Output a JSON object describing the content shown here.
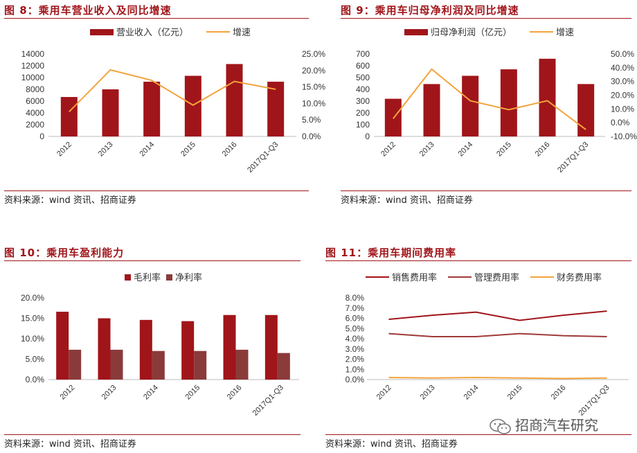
{
  "colors": {
    "accent": "#a0151a",
    "bar_dark": "#a0151a",
    "bar_brown": "#8b3a3a",
    "line_orange": "#f3a33b"
  },
  "charts": [
    {
      "title": "图 8：乘用车营业收入及同比增速",
      "source": "资料来源：wind 资讯、招商证券",
      "legend": [
        "营业收入（亿元）",
        "增速"
      ],
      "chart_data": {
        "type": "bar+line",
        "categories": [
          "2012",
          "2013",
          "2014",
          "2015",
          "2016",
          "2017Q1-Q3"
        ],
        "series": [
          {
            "name": "营业收入（亿元）",
            "type": "bar",
            "axis": "left",
            "values": [
              6700,
              8000,
              9300,
              10300,
              12300,
              9300
            ]
          },
          {
            "name": "增速",
            "type": "line",
            "axis": "right",
            "values": [
              0.075,
              0.202,
              0.17,
              0.095,
              0.167,
              0.143
            ]
          }
        ],
        "left_ticks": [
          "0",
          "2000",
          "4000",
          "6000",
          "8000",
          "10000",
          "12000",
          "14000"
        ],
        "right_ticks": [
          "0.0%",
          "5.0%",
          "10.0%",
          "15.0%",
          "20.0%",
          "25.0%"
        ],
        "ylim_left": [
          0,
          14000
        ],
        "ylim_right": [
          0,
          0.25
        ]
      }
    },
    {
      "title": "图 9：乘用车归母净利润及同比增速",
      "source": "资料来源：wind 资讯、招商证券",
      "legend": [
        "归母净利润（亿元）",
        "增速"
      ],
      "chart_data": {
        "type": "bar+line",
        "categories": [
          "2012",
          "2013",
          "2014",
          "2015",
          "2016",
          "2017Q1-Q3"
        ],
        "series": [
          {
            "name": "归母净利润（亿元）",
            "type": "bar",
            "axis": "left",
            "values": [
              320,
              445,
              515,
              570,
              660,
              445
            ]
          },
          {
            "name": "增速",
            "type": "line",
            "axis": "right",
            "values": [
              0.03,
              0.39,
              0.16,
              0.095,
              0.16,
              -0.05
            ]
          }
        ],
        "left_ticks": [
          "0",
          "100",
          "200",
          "300",
          "400",
          "500",
          "600",
          "700"
        ],
        "right_ticks": [
          "-10.0%",
          "0.0%",
          "10.0%",
          "20.0%",
          "30.0%",
          "40.0%",
          "50.0%"
        ],
        "ylim_left": [
          0,
          700
        ],
        "ylim_right": [
          -0.1,
          0.5
        ]
      }
    },
    {
      "title": "图 10：乘用车盈利能力",
      "source": "资料来源：wind 资讯、招商证券",
      "legend": [
        "毛利率",
        "净利率"
      ],
      "chart_data": {
        "type": "bar",
        "categories": [
          "2012",
          "2013",
          "2014",
          "2015",
          "2016",
          "2017Q1-Q3"
        ],
        "series": [
          {
            "name": "毛利率",
            "values": [
              0.166,
              0.15,
              0.146,
              0.143,
              0.158,
              0.158
            ]
          },
          {
            "name": "净利率",
            "values": [
              0.073,
              0.073,
              0.07,
              0.07,
              0.073,
              0.065
            ]
          }
        ],
        "left_ticks": [
          "0.0%",
          "5.0%",
          "10.0%",
          "15.0%",
          "20.0%"
        ],
        "ylim": [
          0,
          0.2
        ]
      }
    },
    {
      "title": "图 11：乘用车期间费用率",
      "source": "资料来源：wind 资讯、招商证券",
      "legend": [
        "销售费用率",
        "管理费用率",
        "财务费用率"
      ],
      "chart_data": {
        "type": "line",
        "categories": [
          "2012",
          "2013",
          "2014",
          "2015",
          "2016",
          "2017Q1-Q3"
        ],
        "series": [
          {
            "name": "销售费用率",
            "values": [
              0.059,
              0.063,
              0.066,
              0.058,
              0.063,
              0.067
            ]
          },
          {
            "name": "管理费用率",
            "values": [
              0.045,
              0.042,
              0.042,
              0.045,
              0.043,
              0.042
            ]
          },
          {
            "name": "财务费用率",
            "values": [
              0.002,
              0.0015,
              0.002,
              0.0015,
              0.001,
              0.0015
            ]
          }
        ],
        "left_ticks": [
          "0.0%",
          "1.0%",
          "2.0%",
          "3.0%",
          "4.0%",
          "5.0%",
          "6.0%",
          "7.0%",
          "8.0%"
        ],
        "ylim": [
          0,
          0.08
        ]
      }
    }
  ],
  "watermark": "招商汽车研究"
}
